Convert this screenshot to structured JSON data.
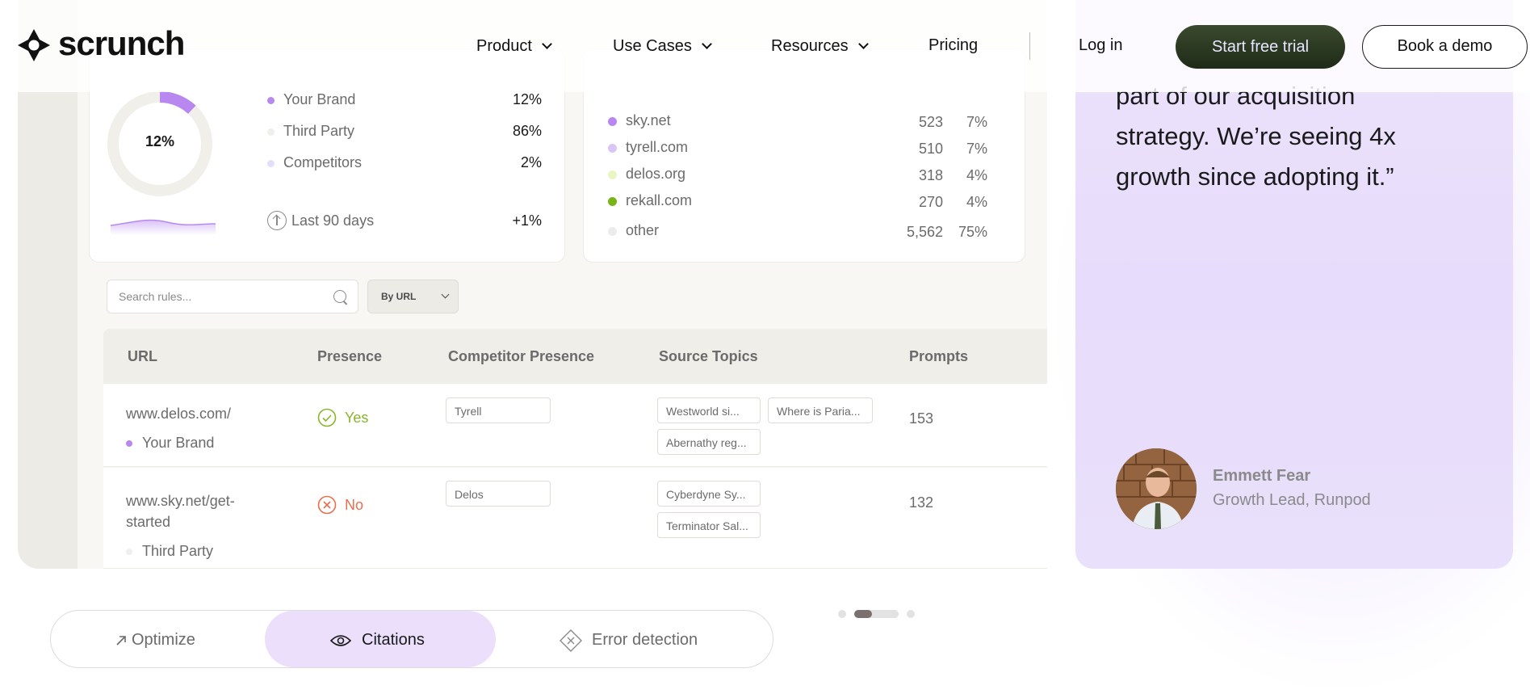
{
  "header": {
    "brand": "scrunch",
    "nav": [
      {
        "label": "Product",
        "has_menu": true
      },
      {
        "label": "Use Cases",
        "has_menu": true
      },
      {
        "label": "Resources",
        "has_menu": true
      },
      {
        "label": "Pricing",
        "has_menu": false
      }
    ],
    "login": "Log in",
    "cta_primary": "Start free trial",
    "cta_secondary": "Book a demo"
  },
  "presence_card": {
    "donut_value": "12%",
    "donut_fraction": 0.12,
    "legend": [
      {
        "name": "Your Brand",
        "pct": "12%",
        "color": "#b888f0"
      },
      {
        "name": "Third Party",
        "pct": "86%",
        "color": "#f0efec"
      },
      {
        "name": "Competitors",
        "pct": "2%",
        "color": "#e5defb"
      }
    ],
    "period_label": "Last 90 days",
    "period_change": "+1%"
  },
  "sources_card": {
    "rows": [
      {
        "name": "sky.net",
        "count": "523",
        "pct": "7%",
        "color": "#b888f0"
      },
      {
        "name": "tyrell.com",
        "count": "510",
        "pct": "7%",
        "color": "#d9c6f7"
      },
      {
        "name": "delos.org",
        "count": "318",
        "pct": "4%",
        "color": "#e8f6c4"
      },
      {
        "name": "rekall.com",
        "count": "270",
        "pct": "4%",
        "color": "#7ab21a"
      },
      {
        "name": "other",
        "count": "5,562",
        "pct": "75%",
        "color": "#ececec"
      }
    ]
  },
  "search": {
    "placeholder": "Search rules..."
  },
  "filter": {
    "label": "By URL"
  },
  "table": {
    "columns": [
      "URL",
      "Presence",
      "Competitor Presence",
      "Source Topics",
      "Prompts"
    ],
    "rows": [
      {
        "url": "www.delos.com/",
        "owner": "Your Brand",
        "owner_color": "#b888f0",
        "presence": "Yes",
        "competitor": "Tyrell",
        "topics": [
          "Westworld si...",
          "Where is Paria...",
          "Abernathy reg..."
        ],
        "prompts": "153"
      },
      {
        "url": "www.sky.net/get-started",
        "url_lines": [
          "www.sky.net/get-",
          "started"
        ],
        "owner": "Third Party",
        "owner_color": "#efefef",
        "presence": "No",
        "competitor": "Delos",
        "topics": [
          "Cyberdyne Sy...",
          "Terminator Sal..."
        ],
        "prompts": "132"
      }
    ]
  },
  "testimonial": {
    "quote_lines": [
      "part of our acquisition",
      "strategy. We’re seeing 4x",
      "growth since adopting it.”"
    ],
    "author": "Emmett Fear",
    "role": "Growth Lead, Runpod"
  },
  "tabs": [
    {
      "label": "Optimize",
      "icon": "arrow-up-right-icon",
      "active": false
    },
    {
      "label": "Citations",
      "icon": "eye-icon",
      "active": true
    },
    {
      "label": "Error detection",
      "icon": "diamond-x-icon",
      "active": false
    }
  ],
  "colors": {
    "brand_purple": "#b888f0",
    "yes_green": "#8ab52a",
    "no_red": "#e5704f",
    "cta_dark": "#263320"
  }
}
